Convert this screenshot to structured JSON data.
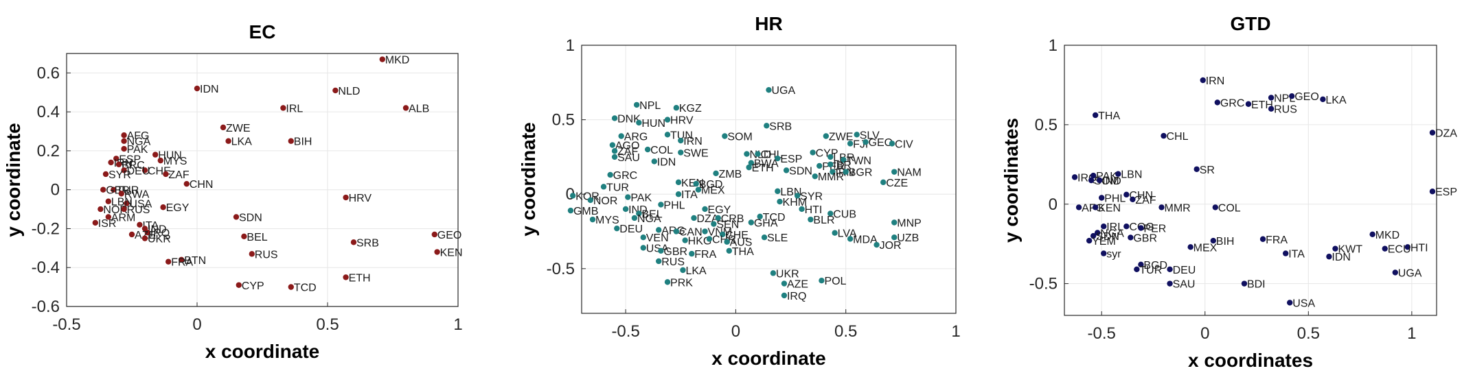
{
  "chart_data": [
    {
      "type": "scatter",
      "title": "EC",
      "xlabel": "x coordinate",
      "ylabel": "y coordinate",
      "xlim": [
        -0.5,
        1
      ],
      "ylim": [
        -0.6,
        0.7
      ],
      "xticks": [
        -0.5,
        0,
        0.5,
        1
      ],
      "yticks": [
        -0.6,
        -0.4,
        -0.2,
        0,
        0.2,
        0.4,
        0.6
      ],
      "xtick_labels": [
        "-0.5",
        "0",
        "0.5",
        "1"
      ],
      "ytick_labels": [
        "-0.6",
        "-0.4",
        "-0.2",
        "0",
        "0.2",
        "0.4",
        "0.6"
      ],
      "grid": true,
      "color": "#8b1a1a",
      "points": [
        {
          "label": "MKD",
          "x": 0.71,
          "y": 0.67
        },
        {
          "label": "NLD",
          "x": 0.53,
          "y": 0.51
        },
        {
          "label": "IDN",
          "x": 0.0,
          "y": 0.52
        },
        {
          "label": "IRL",
          "x": 0.33,
          "y": 0.42
        },
        {
          "label": "ALB",
          "x": 0.8,
          "y": 0.42
        },
        {
          "label": "ZWE",
          "x": 0.1,
          "y": 0.32
        },
        {
          "label": "LKA",
          "x": 0.12,
          "y": 0.25
        },
        {
          "label": "BIH",
          "x": 0.36,
          "y": 0.25
        },
        {
          "label": "AFG",
          "x": -0.28,
          "y": 0.28
        },
        {
          "label": "NGA",
          "x": -0.28,
          "y": 0.25
        },
        {
          "label": "PAK",
          "x": -0.28,
          "y": 0.21
        },
        {
          "label": "HUN",
          "x": -0.16,
          "y": 0.18
        },
        {
          "label": "MYS",
          "x": -0.14,
          "y": 0.15
        },
        {
          "label": "ESP",
          "x": -0.31,
          "y": 0.16
        },
        {
          "label": "IRN",
          "x": -0.33,
          "y": 0.14
        },
        {
          "label": "BRC",
          "x": -0.3,
          "y": 0.13
        },
        {
          "label": "CHE",
          "x": -0.2,
          "y": 0.1
        },
        {
          "label": "DEU",
          "x": -0.28,
          "y": 0.1
        },
        {
          "label": "SYR",
          "x": -0.35,
          "y": 0.08
        },
        {
          "label": "ZAF",
          "x": -0.12,
          "y": 0.08
        },
        {
          "label": "CHN",
          "x": -0.04,
          "y": 0.03
        },
        {
          "label": "TUR",
          "x": -0.32,
          "y": 0.0
        },
        {
          "label": "GBR",
          "x": -0.36,
          "y": 0.0
        },
        {
          "label": "RWA",
          "x": -0.29,
          "y": -0.02
        },
        {
          "label": "HRV",
          "x": 0.57,
          "y": -0.04
        },
        {
          "label": "USA",
          "x": -0.27,
          "y": -0.07
        },
        {
          "label": "EGY",
          "x": -0.13,
          "y": -0.09
        },
        {
          "label": "LBN",
          "x": -0.34,
          "y": -0.06
        },
        {
          "label": "NOR",
          "x": -0.37,
          "y": -0.1
        },
        {
          "label": "RUS",
          "x": -0.28,
          "y": -0.1
        },
        {
          "label": "ARM",
          "x": -0.34,
          "y": -0.14
        },
        {
          "label": "ISR",
          "x": -0.39,
          "y": -0.17
        },
        {
          "label": "ITA",
          "x": -0.22,
          "y": -0.18
        },
        {
          "label": "IND",
          "x": -0.2,
          "y": -0.2
        },
        {
          "label": "IRQ",
          "x": -0.19,
          "y": -0.22
        },
        {
          "label": "SDN",
          "x": 0.15,
          "y": -0.14
        },
        {
          "label": "AZE",
          "x": -0.25,
          "y": -0.23
        },
        {
          "label": "UKR",
          "x": -0.2,
          "y": -0.25
        },
        {
          "label": "BEL",
          "x": 0.18,
          "y": -0.24
        },
        {
          "label": "GEO",
          "x": 0.91,
          "y": -0.23
        },
        {
          "label": "SRB",
          "x": 0.6,
          "y": -0.27
        },
        {
          "label": "KEN",
          "x": 0.92,
          "y": -0.32
        },
        {
          "label": "RUS",
          "x": 0.21,
          "y": -0.33
        },
        {
          "label": "BTN",
          "x": -0.06,
          "y": -0.36
        },
        {
          "label": "FRA",
          "x": -0.11,
          "y": -0.37
        },
        {
          "label": "CYP",
          "x": 0.16,
          "y": -0.49
        },
        {
          "label": "TCD",
          "x": 0.36,
          "y": -0.5
        },
        {
          "label": "ETH",
          "x": 0.57,
          "y": -0.45
        }
      ]
    },
    {
      "type": "scatter",
      "title": "HR",
      "xlabel": "x coordinate",
      "ylabel": "y coordinate",
      "xlim": [
        -0.7,
        1
      ],
      "ylim": [
        -0.8,
        1
      ],
      "xticks": [
        -0.5,
        0,
        0.5,
        1
      ],
      "yticks": [
        -0.5,
        0,
        0.5,
        1
      ],
      "xtick_labels": [
        "-0.5",
        "0",
        "0.5",
        "1"
      ],
      "ytick_labels": [
        "-0.5",
        "0",
        "0.5",
        "1"
      ],
      "grid": true,
      "color": "#1f8080",
      "points": [
        {
          "label": "UGA",
          "x": 0.15,
          "y": 0.7
        },
        {
          "label": "NPL",
          "x": -0.45,
          "y": 0.6
        },
        {
          "label": "KGZ",
          "x": -0.27,
          "y": 0.58
        },
        {
          "label": "DNK",
          "x": -0.55,
          "y": 0.51
        },
        {
          "label": "HUN",
          "x": -0.44,
          "y": 0.48
        },
        {
          "label": "HRV",
          "x": -0.31,
          "y": 0.5
        },
        {
          "label": "SRB",
          "x": 0.14,
          "y": 0.46
        },
        {
          "label": "TUN",
          "x": -0.31,
          "y": 0.4
        },
        {
          "label": "ARG",
          "x": -0.52,
          "y": 0.39
        },
        {
          "label": "SOM",
          "x": -0.05,
          "y": 0.39
        },
        {
          "label": "ZWE",
          "x": 0.41,
          "y": 0.39
        },
        {
          "label": "SLV",
          "x": 0.55,
          "y": 0.4
        },
        {
          "label": "IRN",
          "x": -0.25,
          "y": 0.36
        },
        {
          "label": "AGO",
          "x": -0.56,
          "y": 0.33
        },
        {
          "label": "FJI",
          "x": 0.52,
          "y": 0.34
        },
        {
          "label": "GEO",
          "x": 0.59,
          "y": 0.35
        },
        {
          "label": "CIV",
          "x": 0.71,
          "y": 0.34
        },
        {
          "label": "ZAF",
          "x": -0.55,
          "y": 0.29
        },
        {
          "label": "COL",
          "x": -0.4,
          "y": 0.3
        },
        {
          "label": "SWE",
          "x": -0.25,
          "y": 0.28
        },
        {
          "label": "NLD",
          "x": 0.05,
          "y": 0.27
        },
        {
          "label": "CHL",
          "x": 0.1,
          "y": 0.27
        },
        {
          "label": "CYP",
          "x": 0.35,
          "y": 0.28
        },
        {
          "label": "SAU",
          "x": -0.55,
          "y": 0.25
        },
        {
          "label": "IDN",
          "x": -0.37,
          "y": 0.22
        },
        {
          "label": "ESP",
          "x": 0.19,
          "y": 0.24
        },
        {
          "label": "BWA",
          "x": 0.07,
          "y": 0.21
        },
        {
          "label": "LBR",
          "x": 0.43,
          "y": 0.25
        },
        {
          "label": "TWN",
          "x": 0.49,
          "y": 0.23
        },
        {
          "label": "ETH",
          "x": 0.06,
          "y": 0.18
        },
        {
          "label": "PER",
          "x": 0.38,
          "y": 0.19
        },
        {
          "label": "IBR",
          "x": 0.43,
          "y": 0.2
        },
        {
          "label": "SDN",
          "x": 0.23,
          "y": 0.16
        },
        {
          "label": "IRN",
          "x": 0.44,
          "y": 0.15
        },
        {
          "label": "BGR",
          "x": 0.5,
          "y": 0.15
        },
        {
          "label": "ZMB",
          "x": -0.09,
          "y": 0.14
        },
        {
          "label": "MMR",
          "x": 0.36,
          "y": 0.12
        },
        {
          "label": "NAM",
          "x": 0.72,
          "y": 0.15
        },
        {
          "label": "GRC",
          "x": -0.57,
          "y": 0.13
        },
        {
          "label": "KEN",
          "x": -0.26,
          "y": 0.08
        },
        {
          "label": "BGD",
          "x": -0.18,
          "y": 0.07
        },
        {
          "label": "CZE",
          "x": 0.67,
          "y": 0.08
        },
        {
          "label": "TUR",
          "x": -0.6,
          "y": 0.05
        },
        {
          "label": "MEX",
          "x": -0.17,
          "y": 0.03
        },
        {
          "label": "LBN",
          "x": 0.19,
          "y": 0.02
        },
        {
          "label": "ITA",
          "x": -0.26,
          "y": 0.0
        },
        {
          "label": "KOR",
          "x": -0.74,
          "y": -0.01
        },
        {
          "label": "NOR",
          "x": -0.66,
          "y": -0.04
        },
        {
          "label": "PAK",
          "x": -0.49,
          "y": -0.02
        },
        {
          "label": "SYR",
          "x": 0.28,
          "y": -0.01
        },
        {
          "label": "KHM",
          "x": 0.2,
          "y": -0.05
        },
        {
          "label": "PHL",
          "x": -0.34,
          "y": -0.07
        },
        {
          "label": "GMB",
          "x": -0.75,
          "y": -0.11
        },
        {
          "label": "IND",
          "x": -0.5,
          "y": -0.1
        },
        {
          "label": "EGY",
          "x": -0.14,
          "y": -0.1
        },
        {
          "label": "HTI",
          "x": 0.3,
          "y": -0.1
        },
        {
          "label": "CUB",
          "x": 0.43,
          "y": -0.13
        },
        {
          "label": "BEL",
          "x": -0.44,
          "y": -0.13
        },
        {
          "label": "MYS",
          "x": -0.65,
          "y": -0.17
        },
        {
          "label": "NGA",
          "x": -0.46,
          "y": -0.16
        },
        {
          "label": "DZA",
          "x": -0.19,
          "y": -0.16
        },
        {
          "label": "CRB",
          "x": -0.08,
          "y": -0.16
        },
        {
          "label": "TCD",
          "x": 0.11,
          "y": -0.15
        },
        {
          "label": "BLR",
          "x": 0.34,
          "y": -0.17
        },
        {
          "label": "SEN",
          "x": -0.1,
          "y": -0.2
        },
        {
          "label": "GHA",
          "x": 0.07,
          "y": -0.19
        },
        {
          "label": "MNP",
          "x": 0.72,
          "y": -0.19
        },
        {
          "label": "DEU",
          "x": -0.54,
          "y": -0.23
        },
        {
          "label": "ARG",
          "x": -0.35,
          "y": -0.24
        },
        {
          "label": "CAN",
          "x": -0.27,
          "y": -0.25
        },
        {
          "label": "VNM",
          "x": -0.14,
          "y": -0.25
        },
        {
          "label": "CHE",
          "x": -0.06,
          "y": -0.27
        },
        {
          "label": "UZB",
          "x": 0.72,
          "y": -0.29
        },
        {
          "label": "LVA",
          "x": 0.45,
          "y": -0.26
        },
        {
          "label": "VEN",
          "x": -0.42,
          "y": -0.29
        },
        {
          "label": "HKG",
          "x": -0.23,
          "y": -0.31
        },
        {
          "label": "CHR",
          "x": -0.12,
          "y": -0.3
        },
        {
          "label": "AUS",
          "x": -0.04,
          "y": -0.32
        },
        {
          "label": "SLE",
          "x": 0.13,
          "y": -0.29
        },
        {
          "label": "MDA",
          "x": 0.52,
          "y": -0.3
        },
        {
          "label": "JOR",
          "x": 0.64,
          "y": -0.34
        },
        {
          "label": "USA",
          "x": -0.42,
          "y": -0.36
        },
        {
          "label": "GBR",
          "x": -0.34,
          "y": -0.38
        },
        {
          "label": "FRA",
          "x": -0.2,
          "y": -0.4
        },
        {
          "label": "THA",
          "x": -0.03,
          "y": -0.38
        },
        {
          "label": "RUS",
          "x": -0.35,
          "y": -0.45
        },
        {
          "label": "LKA",
          "x": -0.24,
          "y": -0.51
        },
        {
          "label": "UKR",
          "x": 0.17,
          "y": -0.53
        },
        {
          "label": "PRK",
          "x": -0.31,
          "y": -0.59
        },
        {
          "label": "AZE",
          "x": 0.22,
          "y": -0.6
        },
        {
          "label": "POL",
          "x": 0.39,
          "y": -0.58
        },
        {
          "label": "IRQ",
          "x": 0.22,
          "y": -0.68
        }
      ]
    },
    {
      "type": "scatter",
      "title": "GTD",
      "xlabel": "x coordinates",
      "ylabel": "y coordinates",
      "xlim": [
        -0.68,
        1.12
      ],
      "ylim": [
        -0.7,
        1
      ],
      "xticks": [
        -0.5,
        0,
        0.5,
        1
      ],
      "yticks": [
        -0.5,
        0,
        0.5,
        1
      ],
      "xtick_labels": [
        "-0.5",
        "0",
        "0.5",
        "1"
      ],
      "ytick_labels": [
        "-0.5",
        "0",
        "0.5",
        "1"
      ],
      "grid": true,
      "color": "#101060",
      "points": [
        {
          "label": "IRN",
          "x": -0.01,
          "y": 0.78
        },
        {
          "label": "GRC",
          "x": 0.06,
          "y": 0.64
        },
        {
          "label": "NPL",
          "x": 0.32,
          "y": 0.67
        },
        {
          "label": "GEO",
          "x": 0.42,
          "y": 0.68
        },
        {
          "label": "LKA",
          "x": 0.57,
          "y": 0.66
        },
        {
          "label": "ETH",
          "x": 0.21,
          "y": 0.63
        },
        {
          "label": "RUS",
          "x": 0.32,
          "y": 0.6
        },
        {
          "label": "THA",
          "x": -0.53,
          "y": 0.56
        },
        {
          "label": "CHL",
          "x": -0.2,
          "y": 0.43
        },
        {
          "label": "DZA",
          "x": 1.1,
          "y": 0.45
        },
        {
          "label": "SR",
          "x": -0.04,
          "y": 0.22
        },
        {
          "label": "IRQ",
          "x": -0.63,
          "y": 0.17
        },
        {
          "label": "PAK",
          "x": -0.54,
          "y": 0.18
        },
        {
          "label": "LBN",
          "x": -0.42,
          "y": 0.19
        },
        {
          "label": "SOM",
          "x": -0.55,
          "y": 0.15
        },
        {
          "label": "IND",
          "x": -0.51,
          "y": 0.15
        },
        {
          "label": "ESP",
          "x": 1.1,
          "y": 0.08
        },
        {
          "label": "CHN",
          "x": -0.38,
          "y": 0.06
        },
        {
          "label": "PHL",
          "x": -0.5,
          "y": 0.04
        },
        {
          "label": "ZAF",
          "x": -0.35,
          "y": 0.03
        },
        {
          "label": "AFG",
          "x": -0.61,
          "y": -0.02
        },
        {
          "label": "KEN",
          "x": -0.53,
          "y": -0.02
        },
        {
          "label": "MMR",
          "x": -0.21,
          "y": -0.02
        },
        {
          "label": "COL",
          "x": 0.05,
          "y": -0.02
        },
        {
          "label": "IRL",
          "x": -0.49,
          "y": -0.14
        },
        {
          "label": "COG",
          "x": -0.38,
          "y": -0.14
        },
        {
          "label": "NGA",
          "x": -0.52,
          "y": -0.18
        },
        {
          "label": "PER",
          "x": -0.31,
          "y": -0.15
        },
        {
          "label": "SDN",
          "x": -0.54,
          "y": -0.2
        },
        {
          "label": "YEM",
          "x": -0.56,
          "y": -0.23
        },
        {
          "label": "GBR",
          "x": -0.36,
          "y": -0.21
        },
        {
          "label": "MKD",
          "x": 0.81,
          "y": -0.19
        },
        {
          "label": "FRA",
          "x": 0.28,
          "y": -0.22
        },
        {
          "label": "BIH",
          "x": 0.04,
          "y": -0.23
        },
        {
          "label": "HTI",
          "x": 0.98,
          "y": -0.27
        },
        {
          "label": "MEX",
          "x": -0.07,
          "y": -0.27
        },
        {
          "label": "KWT",
          "x": 0.63,
          "y": -0.28
        },
        {
          "label": "ECU",
          "x": 0.87,
          "y": -0.28
        },
        {
          "label": "syr",
          "x": -0.49,
          "y": -0.31
        },
        {
          "label": "ITA",
          "x": 0.39,
          "y": -0.31
        },
        {
          "label": "IDN",
          "x": 0.6,
          "y": -0.33
        },
        {
          "label": "BGD",
          "x": -0.31,
          "y": -0.38
        },
        {
          "label": "TUR",
          "x": -0.33,
          "y": -0.41
        },
        {
          "label": "DEU",
          "x": -0.17,
          "y": -0.41
        },
        {
          "label": "UGA",
          "x": 0.92,
          "y": -0.43
        },
        {
          "label": "BDI",
          "x": 0.19,
          "y": -0.5
        },
        {
          "label": "SAU",
          "x": -0.17,
          "y": -0.5
        },
        {
          "label": "USA",
          "x": 0.41,
          "y": -0.62
        }
      ]
    }
  ]
}
